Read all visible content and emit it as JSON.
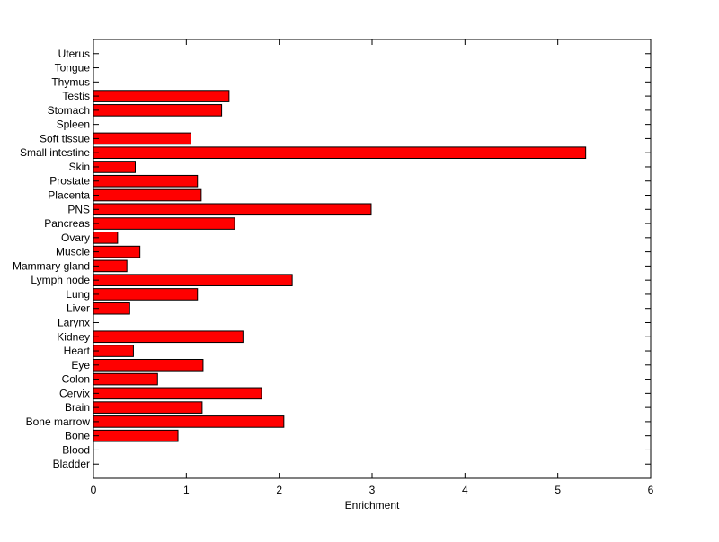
{
  "chart_data": {
    "type": "bar",
    "orientation": "horizontal",
    "title": "",
    "xlabel": "Enrichment",
    "ylabel": "",
    "xlim": [
      0,
      6
    ],
    "xticks": [
      0,
      1,
      2,
      3,
      4,
      5,
      6
    ],
    "grid": false,
    "legend": false,
    "bar_color": "#ff0000",
    "edge_color": "#000000",
    "categories": [
      "Uterus",
      "Tongue",
      "Thymus",
      "Testis",
      "Stomach",
      "Spleen",
      "Soft tissue",
      "Small intestine",
      "Skin",
      "Prostate",
      "Placenta",
      "PNS",
      "Pancreas",
      "Ovary",
      "Muscle",
      "Mammary gland",
      "Lymph node",
      "Lung",
      "Liver",
      "Larynx",
      "Kidney",
      "Heart",
      "Eye",
      "Colon",
      "Cervix",
      "Brain",
      "Bone marrow",
      "Bone",
      "Blood",
      "Bladder"
    ],
    "values": [
      0,
      0,
      0,
      1.46,
      1.38,
      0,
      1.05,
      5.3,
      0.45,
      1.12,
      1.16,
      2.99,
      1.52,
      0.26,
      0.5,
      0.36,
      2.14,
      1.12,
      0.39,
      0,
      1.61,
      0.43,
      1.18,
      0.69,
      1.81,
      1.17,
      2.05,
      0.91,
      0,
      0
    ]
  }
}
